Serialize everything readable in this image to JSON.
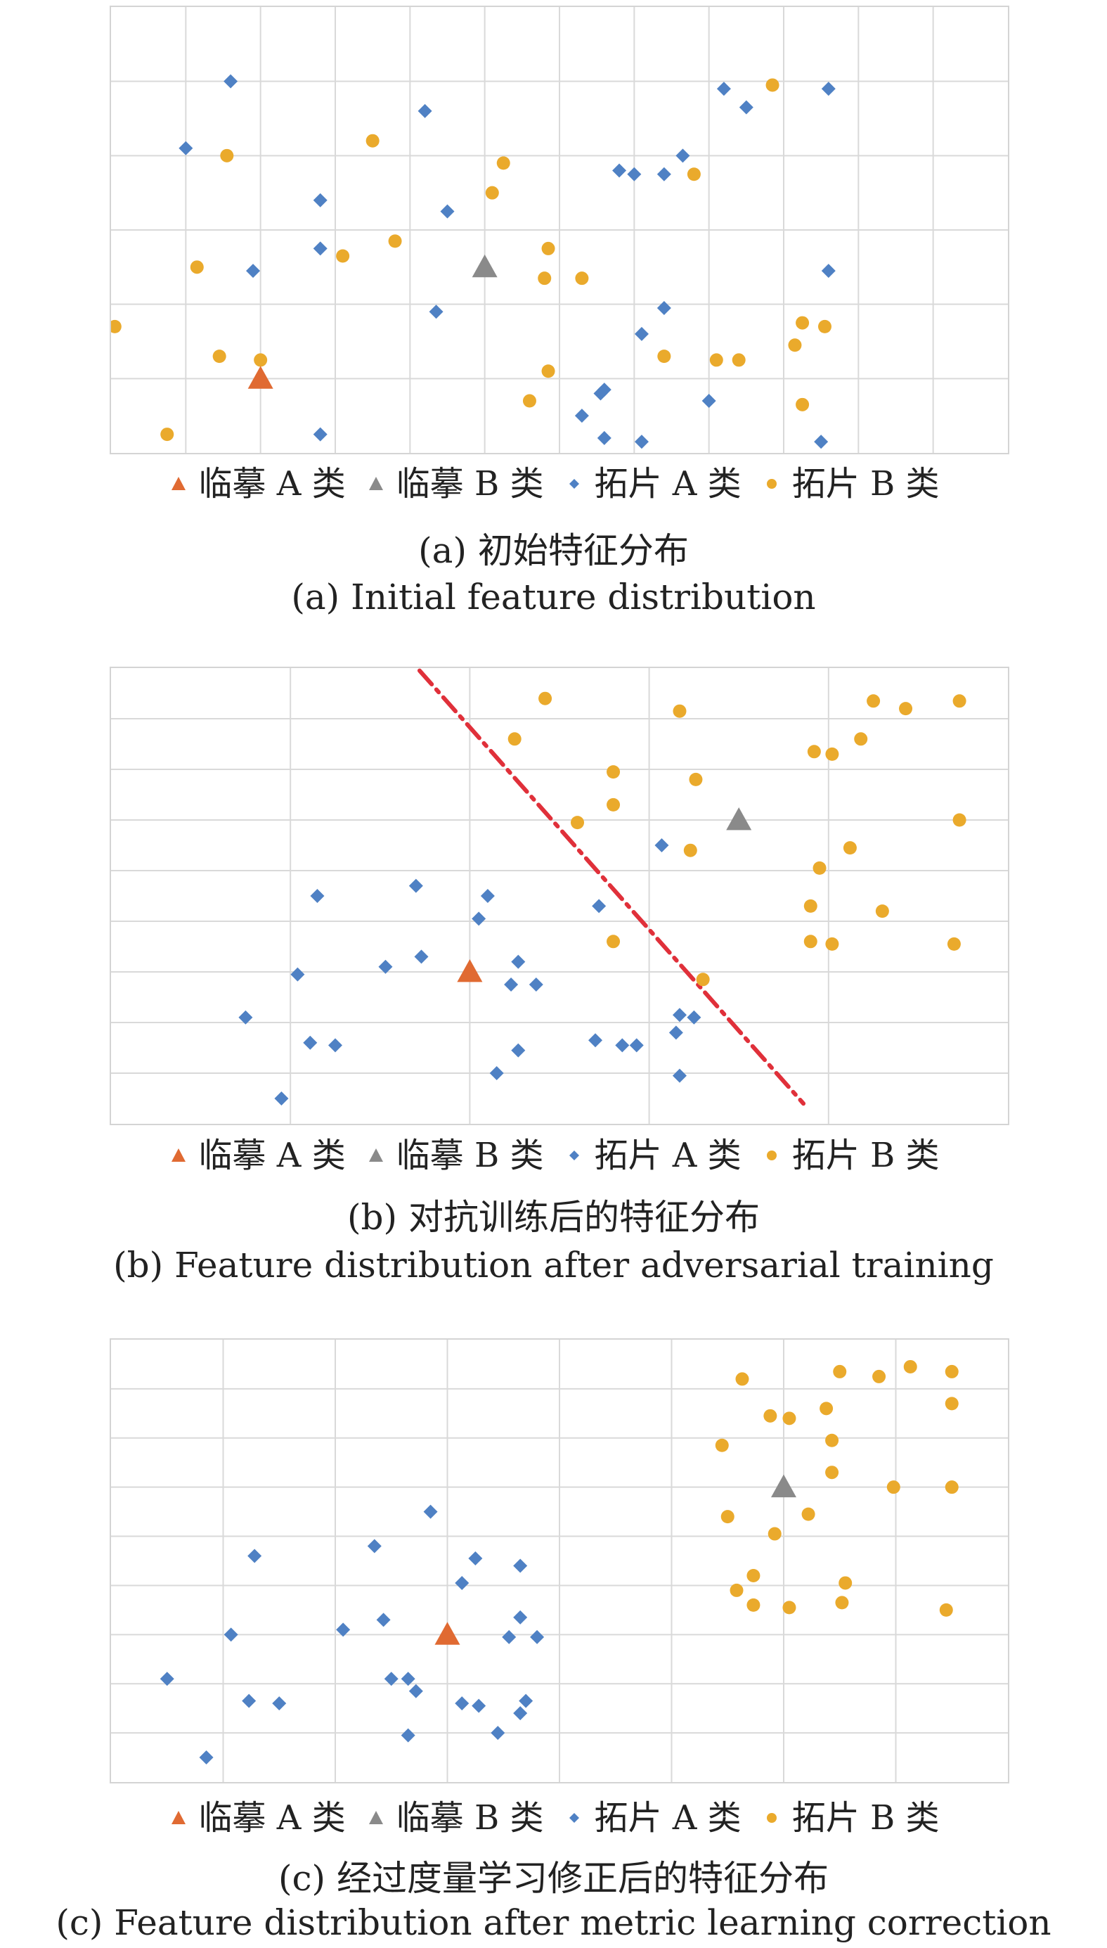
{
  "legend": [
    {
      "key": "linmo_a",
      "label": "临摹 A 类",
      "shape": "triangle",
      "color": "#e06a32"
    },
    {
      "key": "linmo_b",
      "label": "临摹 B 类",
      "shape": "triangle",
      "color": "#8a8a8a"
    },
    {
      "key": "tapian_a",
      "label": "拓片 A 类",
      "shape": "diamond",
      "color": "#4f81c4"
    },
    {
      "key": "tapian_b",
      "label": "拓片 B 类",
      "shape": "circle",
      "color": "#eaaa2c"
    }
  ],
  "chart_data": [
    {
      "type": "scatter",
      "caption_cn": "(a) 初始特征分布",
      "caption_en": "(a) Initial feature distribution",
      "xlim": [
        0,
        12
      ],
      "ylim": [
        0,
        6
      ],
      "grid": true,
      "legend_position": "bottom",
      "series": [
        {
          "key": "linmo_a",
          "name": "临摹 A 类",
          "color": "#e06a32",
          "points": [
            [
              2.0,
              1.0
            ]
          ]
        },
        {
          "key": "linmo_b",
          "name": "临摹 B 类",
          "color": "#8a8a8a",
          "points": [
            [
              5.0,
              2.5
            ]
          ]
        },
        {
          "key": "tapian_a",
          "name": "拓片 A 类",
          "color": "#4f81c4",
          "points": [
            [
              1.6,
              5.0
            ],
            [
              1.0,
              4.1
            ],
            [
              2.8,
              3.4
            ],
            [
              1.9,
              2.45
            ],
            [
              2.8,
              2.75
            ],
            [
              4.2,
              4.6
            ],
            [
              4.5,
              3.25
            ],
            [
              4.35,
              1.9
            ],
            [
              6.8,
              3.8
            ],
            [
              7.4,
              3.75
            ],
            [
              7.0,
              3.75
            ],
            [
              7.65,
              4.0
            ],
            [
              8.2,
              4.9
            ],
            [
              8.5,
              4.65
            ],
            [
              9.6,
              4.9
            ],
            [
              9.6,
              2.45
            ],
            [
              7.1,
              1.6
            ],
            [
              7.4,
              1.95
            ],
            [
              6.55,
              0.8
            ],
            [
              6.6,
              0.85
            ],
            [
              6.3,
              0.5
            ],
            [
              6.6,
              0.2
            ],
            [
              7.1,
              0.15
            ],
            [
              8.0,
              0.7
            ],
            [
              9.5,
              0.15
            ],
            [
              2.8,
              0.25
            ]
          ]
        },
        {
          "key": "tapian_b",
          "name": "拓片 B 类",
          "color": "#eaaa2c",
          "points": [
            [
              0.05,
              1.7
            ],
            [
              0.75,
              0.25
            ],
            [
              1.15,
              2.5
            ],
            [
              1.45,
              1.3
            ],
            [
              2.0,
              1.25
            ],
            [
              1.55,
              4.0
            ],
            [
              3.1,
              2.65
            ],
            [
              3.5,
              4.2
            ],
            [
              3.8,
              2.85
            ],
            [
              5.1,
              3.5
            ],
            [
              5.25,
              3.9
            ],
            [
              5.6,
              0.7
            ],
            [
              5.8,
              2.35
            ],
            [
              6.3,
              2.35
            ],
            [
              5.85,
              2.75
            ],
            [
              5.85,
              1.1
            ],
            [
              7.4,
              1.3
            ],
            [
              7.8,
              3.75
            ],
            [
              8.1,
              1.25
            ],
            [
              8.4,
              1.25
            ],
            [
              8.85,
              4.95
            ],
            [
              9.15,
              1.45
            ],
            [
              9.25,
              1.75
            ],
            [
              9.25,
              0.65
            ],
            [
              9.55,
              1.7
            ]
          ]
        }
      ]
    },
    {
      "type": "scatter",
      "caption_cn": "(b) 对抗训练后的特征分布",
      "caption_en": "(b) Feature distribution after adversarial training",
      "xlim": [
        0,
        5
      ],
      "ylim": [
        0,
        9
      ],
      "grid": true,
      "legend_position": "bottom",
      "boundary_line": {
        "style": "dash-dot",
        "color": "#e0303a",
        "points": [
          [
            1.72,
            8.95
          ],
          [
            3.86,
            0.4
          ]
        ]
      },
      "series": [
        {
          "key": "linmo_a",
          "name": "临摹 A 类",
          "color": "#e06a32",
          "points": [
            [
              2.0,
              3.0
            ]
          ]
        },
        {
          "key": "linmo_b",
          "name": "临摹 B 类",
          "color": "#8a8a8a",
          "points": [
            [
              3.5,
              6.0
            ]
          ]
        },
        {
          "key": "tapian_a",
          "name": "拓片 A 类",
          "color": "#4f81c4",
          "points": [
            [
              0.75,
              2.1
            ],
            [
              0.95,
              0.5
            ],
            [
              1.04,
              2.95
            ],
            [
              1.11,
              1.6
            ],
            [
              1.15,
              4.5
            ],
            [
              1.25,
              1.55
            ],
            [
              1.53,
              3.1
            ],
            [
              1.7,
              4.7
            ],
            [
              1.73,
              3.3
            ],
            [
              2.05,
              4.05
            ],
            [
              2.1,
              4.5
            ],
            [
              2.15,
              1.0
            ],
            [
              2.23,
              2.75
            ],
            [
              2.27,
              3.2
            ],
            [
              2.27,
              1.45
            ],
            [
              2.37,
              2.75
            ],
            [
              2.7,
              1.65
            ],
            [
              2.72,
              4.3
            ],
            [
              2.85,
              1.55
            ],
            [
              2.93,
              1.55
            ],
            [
              3.07,
              5.5
            ],
            [
              3.15,
              1.8
            ],
            [
              3.17,
              0.95
            ],
            [
              3.17,
              2.15
            ],
            [
              3.25,
              2.1
            ]
          ]
        },
        {
          "key": "tapian_b",
          "name": "拓片 B 类",
          "color": "#eaaa2c",
          "points": [
            [
              2.25,
              7.6
            ],
            [
              2.42,
              8.4
            ],
            [
              2.6,
              5.95
            ],
            [
              2.8,
              6.95
            ],
            [
              2.8,
              6.3
            ],
            [
              2.8,
              3.6
            ],
            [
              3.17,
              8.15
            ],
            [
              3.23,
              5.4
            ],
            [
              3.26,
              6.8
            ],
            [
              3.3,
              2.85
            ],
            [
              3.9,
              4.3
            ],
            [
              3.9,
              3.6
            ],
            [
              3.92,
              7.35
            ],
            [
              3.95,
              5.05
            ],
            [
              4.02,
              7.3
            ],
            [
              4.02,
              3.55
            ],
            [
              4.12,
              5.45
            ],
            [
              4.18,
              7.6
            ],
            [
              4.25,
              8.35
            ],
            [
              4.3,
              4.2
            ],
            [
              4.43,
              8.2
            ],
            [
              4.7,
              3.55
            ],
            [
              4.73,
              6.0
            ],
            [
              4.73,
              8.35
            ]
          ]
        }
      ]
    },
    {
      "type": "scatter",
      "caption_cn": "(c) 经过度量学习修正后的特征分布",
      "caption_en": "(c) Feature distribution after metric learning correction",
      "xlim": [
        0,
        8
      ],
      "ylim": [
        0,
        9
      ],
      "grid": true,
      "legend_position": "bottom",
      "series": [
        {
          "key": "linmo_a",
          "name": "临摹 A 类",
          "color": "#e06a32",
          "points": [
            [
              3.0,
              3.0
            ]
          ]
        },
        {
          "key": "linmo_b",
          "name": "临摹 B 类",
          "color": "#8a8a8a",
          "points": [
            [
              6.0,
              6.0
            ]
          ]
        },
        {
          "key": "tapian_a",
          "name": "拓片 A 类",
          "color": "#4f81c4",
          "points": [
            [
              0.5,
              2.1
            ],
            [
              0.85,
              0.5
            ],
            [
              1.07,
              3.0
            ],
            [
              1.23,
              1.65
            ],
            [
              1.28,
              4.6
            ],
            [
              1.5,
              1.6
            ],
            [
              2.07,
              3.1
            ],
            [
              2.35,
              4.8
            ],
            [
              2.43,
              3.3
            ],
            [
              2.5,
              2.1
            ],
            [
              2.65,
              2.1
            ],
            [
              2.65,
              0.95
            ],
            [
              2.72,
              1.85
            ],
            [
              2.85,
              5.5
            ],
            [
              3.13,
              4.05
            ],
            [
              3.13,
              1.6
            ],
            [
              3.25,
              4.55
            ],
            [
              3.28,
              1.55
            ],
            [
              3.45,
              1.0
            ],
            [
              3.55,
              2.95
            ],
            [
              3.65,
              4.4
            ],
            [
              3.65,
              3.35
            ],
            [
              3.65,
              1.4
            ],
            [
              3.7,
              1.65
            ],
            [
              3.8,
              2.95
            ]
          ]
        },
        {
          "key": "tapian_b",
          "name": "拓片 B 类",
          "color": "#eaaa2c",
          "points": [
            [
              5.45,
              6.85
            ],
            [
              5.5,
              5.4
            ],
            [
              5.58,
              3.9
            ],
            [
              5.63,
              8.2
            ],
            [
              5.73,
              3.6
            ],
            [
              5.73,
              4.2
            ],
            [
              5.88,
              7.45
            ],
            [
              5.92,
              5.05
            ],
            [
              6.05,
              7.4
            ],
            [
              6.05,
              3.55
            ],
            [
              6.22,
              5.45
            ],
            [
              6.38,
              7.6
            ],
            [
              6.43,
              6.95
            ],
            [
              6.43,
              6.3
            ],
            [
              6.5,
              8.35
            ],
            [
              6.55,
              4.05
            ],
            [
              6.52,
              3.65
            ],
            [
              6.85,
              8.25
            ],
            [
              6.98,
              6.0
            ],
            [
              7.13,
              8.45
            ],
            [
              7.45,
              3.5
            ],
            [
              7.5,
              7.7
            ],
            [
              7.5,
              6.0
            ],
            [
              7.5,
              8.35
            ]
          ]
        }
      ]
    }
  ]
}
